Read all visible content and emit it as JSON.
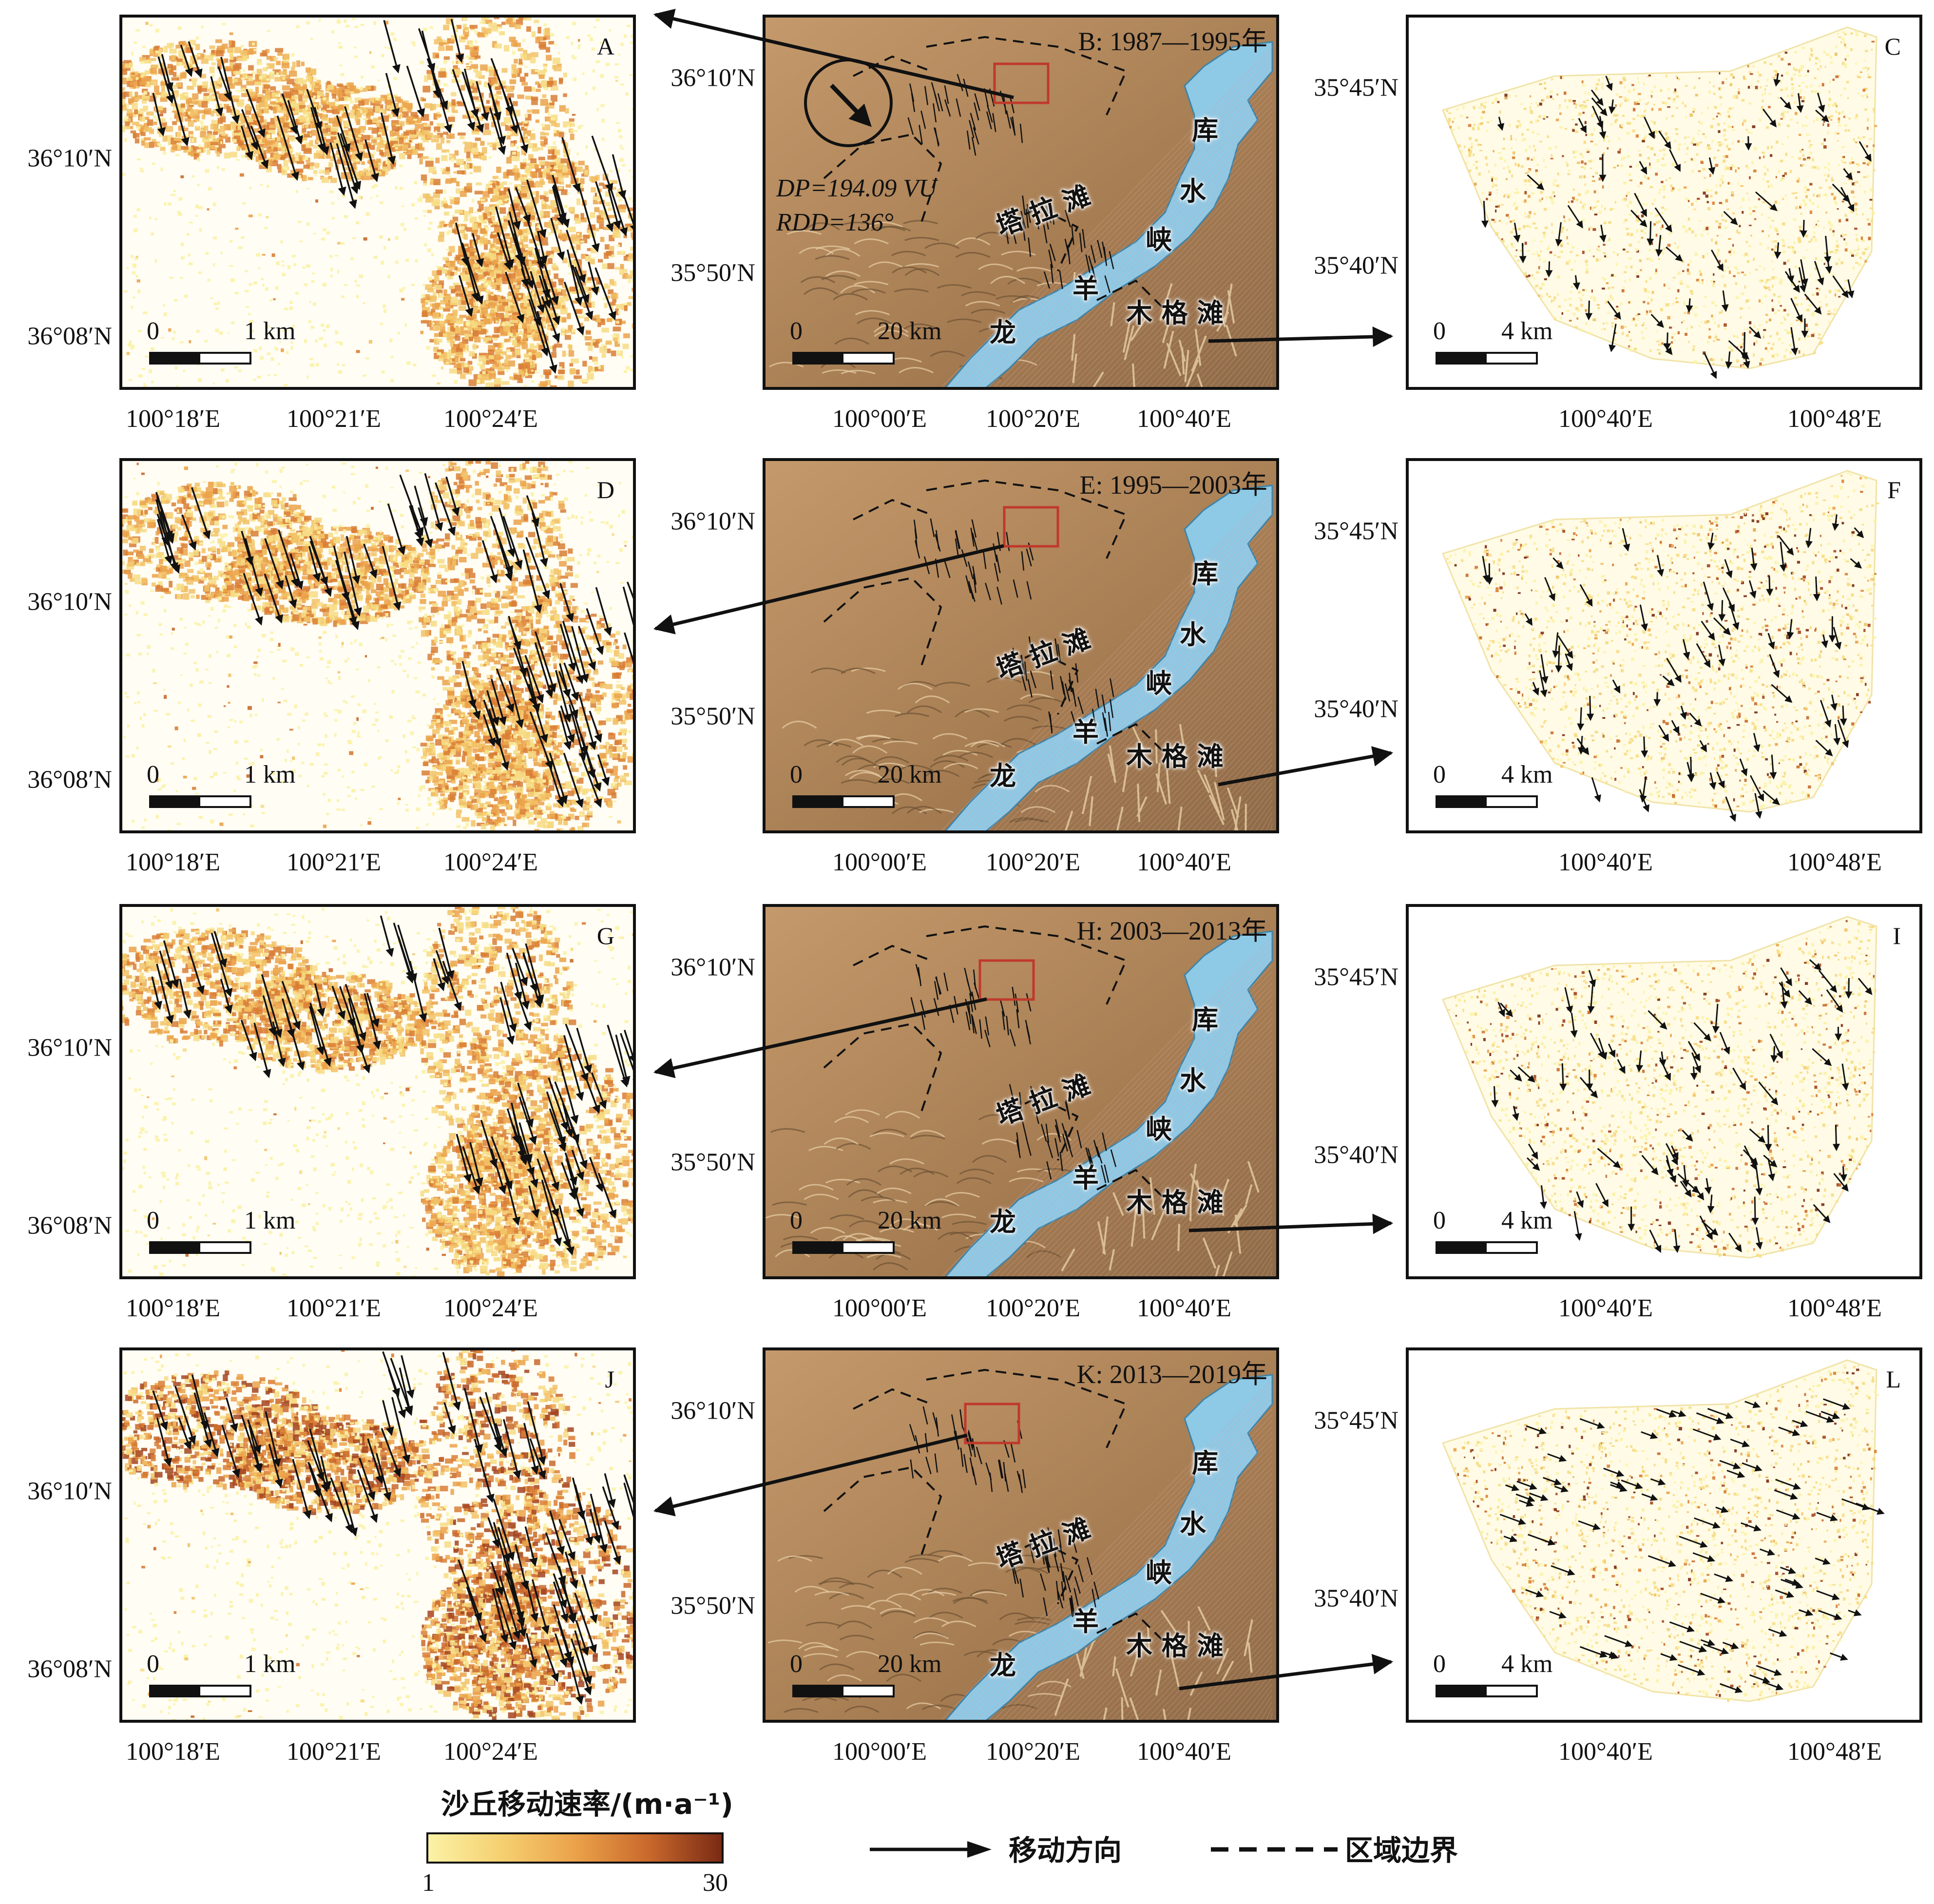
{
  "rows": [
    {
      "left": {
        "letter": "A",
        "lat_ticks": [
          "36°10′N",
          "36°08′N"
        ],
        "lon_ticks": [
          "100°18′E",
          "100°21′E",
          "100°24′E"
        ],
        "scale": {
          "zero": "0",
          "label": "1 km"
        }
      },
      "center": {
        "title": "B: 1987—1995年",
        "lat_ticks": [
          "36°10′N",
          "35°50′N"
        ],
        "lon_ticks": [
          "100°00′E",
          "100°20′E",
          "100°40′E"
        ],
        "scale": {
          "zero": "0",
          "label": "20 km"
        }
      },
      "right": {
        "letter": "C",
        "lat_ticks": [
          "35°45′N",
          "35°40′N"
        ],
        "lon_ticks": [
          "100°40′E",
          "100°48′E"
        ],
        "scale": {
          "zero": "0",
          "label": "4 km"
        }
      }
    },
    {
      "left": {
        "letter": "D",
        "lat_ticks": [
          "36°10′N",
          "36°08′N"
        ],
        "lon_ticks": [
          "100°18′E",
          "100°21′E",
          "100°24′E"
        ],
        "scale": {
          "zero": "0",
          "label": "1 km"
        }
      },
      "center": {
        "title": "E: 1995—2003年",
        "lat_ticks": [
          "36°10′N",
          "35°50′N"
        ],
        "lon_ticks": [
          "100°00′E",
          "100°20′E",
          "100°40′E"
        ],
        "scale": {
          "zero": "0",
          "label": "20 km"
        }
      },
      "right": {
        "letter": "F",
        "lat_ticks": [
          "35°45′N",
          "35°40′N"
        ],
        "lon_ticks": [
          "100°40′E",
          "100°48′E"
        ],
        "scale": {
          "zero": "0",
          "label": "4 km"
        }
      }
    },
    {
      "left": {
        "letter": "G",
        "lat_ticks": [
          "36°10′N",
          "36°08′N"
        ],
        "lon_ticks": [
          "100°18′E",
          "100°21′E",
          "100°24′E"
        ],
        "scale": {
          "zero": "0",
          "label": "1 km"
        }
      },
      "center": {
        "title": "H: 2003—2013年",
        "lat_ticks": [
          "36°10′N",
          "35°50′N"
        ],
        "lon_ticks": [
          "100°00′E",
          "100°20′E",
          "100°40′E"
        ],
        "scale": {
          "zero": "0",
          "label": "20 km"
        }
      },
      "right": {
        "letter": "I",
        "lat_ticks": [
          "35°45′N",
          "35°40′N"
        ],
        "lon_ticks": [
          "100°40′E",
          "100°48′E"
        ],
        "scale": {
          "zero": "0",
          "label": "4 km"
        }
      }
    },
    {
      "left": {
        "letter": "J",
        "lat_ticks": [
          "36°10′N",
          "36°08′N"
        ],
        "lon_ticks": [
          "100°18′E",
          "100°21′E",
          "100°24′E"
        ],
        "scale": {
          "zero": "0",
          "label": "1 km"
        }
      },
      "center": {
        "title": "K: 2013—2019年",
        "lat_ticks": [
          "36°10′N",
          "35°50′N"
        ],
        "lon_ticks": [
          "100°00′E",
          "100°20′E",
          "100°40′E"
        ],
        "scale": {
          "zero": "0",
          "label": "20 km"
        }
      },
      "right": {
        "letter": "L",
        "lat_ticks": [
          "35°45′N",
          "35°40′N"
        ],
        "lon_ticks": [
          "100°40′E",
          "100°48′E"
        ],
        "scale": {
          "zero": "0",
          "label": "4 km"
        }
      }
    }
  ],
  "place_names": {
    "talatan": "塔 拉 滩",
    "ku": "库",
    "shui": "水",
    "xia": "峡",
    "yang": "羊",
    "long": "龙",
    "mugetan": "木 格 滩"
  },
  "wind_rose": {
    "dp": "DP=194.09 VU",
    "rdd": "RDD=136°",
    "dp_value": 194.09,
    "rdd_value": 136
  },
  "legend": {
    "title": "沙丘移动速率/(m·a⁻¹)",
    "min_label": "1",
    "max_label": "30",
    "colors": [
      "#fbf2a6",
      "#f5d070",
      "#eba24a",
      "#c9692c",
      "#7a2a14"
    ],
    "arrow_label": "移动方向",
    "boundary_label": "区域边界"
  },
  "colors": {
    "lake": "#8ec9e6",
    "dem": "#b58a5f",
    "border": "#111111",
    "box": "#c0392b"
  }
}
